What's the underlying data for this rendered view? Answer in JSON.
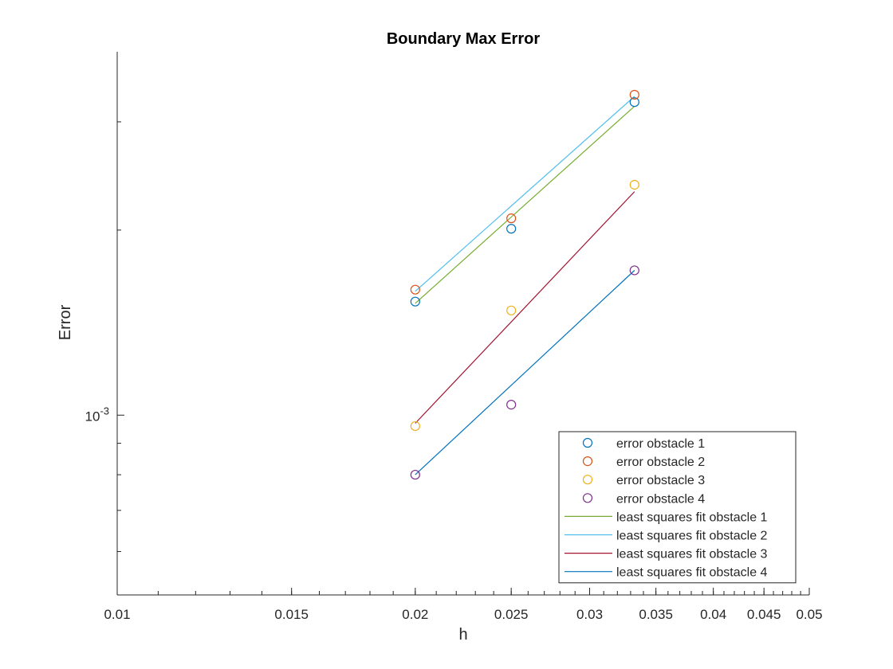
{
  "chart_data": {
    "type": "scatter",
    "title": "Boundary Max Error",
    "xlabel": "h",
    "ylabel": "Error",
    "x_scale": "log",
    "y_scale": "log",
    "xlim": [
      0.01,
      0.05
    ],
    "ylim": [
      0.00051,
      0.0039
    ],
    "x_ticks": [
      0.01,
      0.015,
      0.02,
      0.025,
      0.03,
      0.035,
      0.04,
      0.045,
      0.05
    ],
    "x_tick_labels": [
      "0.01",
      "0.015",
      "0.02",
      "0.025",
      "0.03",
      "0.035",
      "0.04",
      "0.045",
      "0.05"
    ],
    "y_ticks": [
      0.001
    ],
    "y_tick_labels": [
      {
        "base": "10",
        "exp": "-3"
      }
    ],
    "grid": false,
    "legend_position": "bottom-right",
    "series": [
      {
        "name": "error obstacle 1",
        "kind": "markers",
        "color": "#0072BD",
        "x": [
          0.02,
          0.025,
          0.0333
        ],
        "y": [
          0.00153,
          0.00201,
          0.00323
        ]
      },
      {
        "name": "error obstacle 2",
        "kind": "markers",
        "color": "#D95319",
        "x": [
          0.02,
          0.025,
          0.0333
        ],
        "y": [
          0.0016,
          0.00209,
          0.00332
        ]
      },
      {
        "name": "error obstacle 3",
        "kind": "markers",
        "color": "#EDB120",
        "x": [
          0.02,
          0.025,
          0.0333
        ],
        "y": [
          0.00096,
          0.00148,
          0.00237
        ]
      },
      {
        "name": "error obstacle 4",
        "kind": "markers",
        "color": "#7E2F8E",
        "x": [
          0.02,
          0.025,
          0.0333
        ],
        "y": [
          0.0008,
          0.00104,
          0.00172
        ]
      },
      {
        "name": "least squares fit obstacle 1",
        "kind": "line",
        "color": "#77AC30",
        "x": [
          0.02,
          0.0333
        ],
        "y": [
          0.00152,
          0.00318
        ]
      },
      {
        "name": "least squares fit obstacle 2",
        "kind": "line",
        "color": "#4DBEEE",
        "x": [
          0.02,
          0.0333
        ],
        "y": [
          0.00159,
          0.0033
        ]
      },
      {
        "name": "least squares fit obstacle 3",
        "kind": "line",
        "color": "#A2142F",
        "x": [
          0.02,
          0.0333
        ],
        "y": [
          0.00097,
          0.00231
        ]
      },
      {
        "name": "least squares fit obstacle 4",
        "kind": "line",
        "color": "#0072BD",
        "x": [
          0.02,
          0.0333
        ],
        "y": [
          0.0008,
          0.00172
        ]
      }
    ]
  }
}
